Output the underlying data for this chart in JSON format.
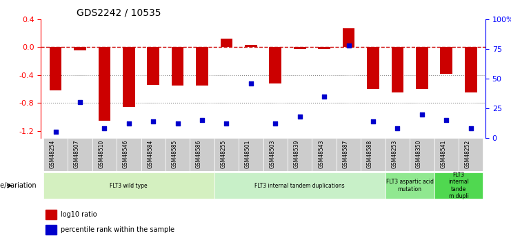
{
  "title": "GDS2242 / 10535",
  "samples": [
    "GSM48254",
    "GSM48507",
    "GSM48510",
    "GSM48546",
    "GSM48584",
    "GSM48585",
    "GSM48586",
    "GSM48255",
    "GSM48501",
    "GSM48503",
    "GSM48539",
    "GSM48543",
    "GSM48587",
    "GSM48588",
    "GSM48253",
    "GSM48350",
    "GSM48541",
    "GSM48252"
  ],
  "log10_ratio": [
    -0.62,
    -0.05,
    -1.05,
    -0.86,
    -0.54,
    -0.55,
    -0.55,
    0.12,
    0.03,
    -0.52,
    -0.03,
    -0.03,
    0.27,
    -0.6,
    -0.65,
    -0.6,
    -0.38,
    -0.65
  ],
  "percentile_rank": [
    5,
    30,
    8,
    12,
    14,
    12,
    15,
    12,
    46,
    12,
    18,
    35,
    78,
    14,
    8,
    20,
    15,
    8
  ],
  "groups": [
    {
      "label": "FLT3 wild type",
      "start": 0,
      "end": 7,
      "color": "#d4f0c0"
    },
    {
      "label": "FLT3 internal tandem duplications",
      "start": 7,
      "end": 14,
      "color": "#c8f0c8"
    },
    {
      "label": "FLT3 aspartic acid\nmutation",
      "start": 14,
      "end": 16,
      "color": "#90e890"
    },
    {
      "label": "FLT3\ninternal\ntande\nm dupli",
      "start": 16,
      "end": 18,
      "color": "#50d850"
    }
  ],
  "bar_color": "#cc0000",
  "dot_color": "#0000cc",
  "dashed_color": "#cc0000",
  "grid_color": "#888888",
  "ylim_left": [
    -1.3,
    0.4
  ],
  "ylim_right": [
    0,
    100
  ],
  "right_ticks": [
    0,
    25,
    50,
    75,
    100
  ],
  "right_tick_labels": [
    "0",
    "25",
    "50",
    "75",
    "100%"
  ],
  "left_ticks": [
    -1.2,
    -0.8,
    -0.4,
    0.0,
    0.4
  ],
  "legend_items": [
    {
      "label": "log10 ratio",
      "color": "#cc0000",
      "marker": "s"
    },
    {
      "label": "percentile rank within the sample",
      "color": "#0000cc",
      "marker": "s"
    }
  ]
}
